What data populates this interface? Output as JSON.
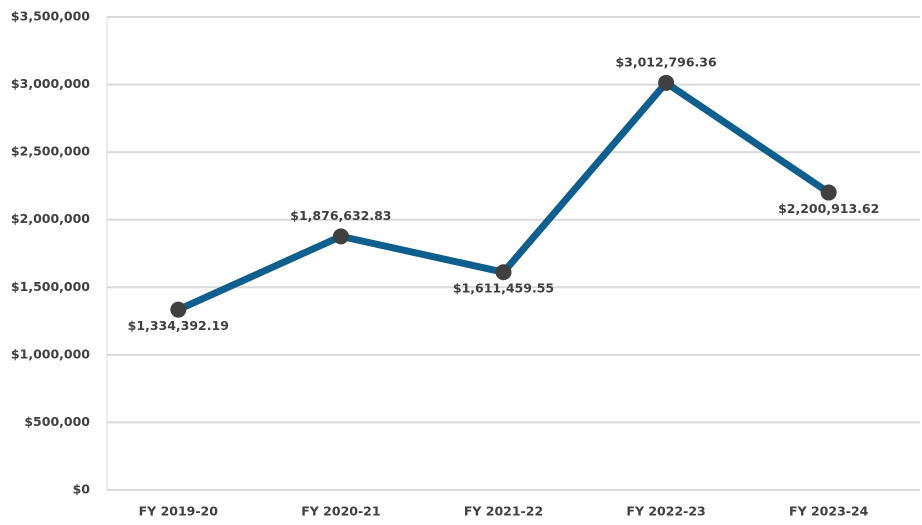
{
  "chart_data": {
    "type": "line",
    "categories": [
      "FY 2019-20",
      "FY 2020-21",
      "FY 2021-22",
      "FY 2022-23",
      "FY 2023-24"
    ],
    "series": [
      {
        "color": "#0e5f8e",
        "marker_color": "#404040",
        "values": [
          1334392.19,
          1876632.83,
          1611459.55,
          3012796.36,
          2200913.62
        ],
        "value_labels": [
          "$1,334,392.19",
          "$1,876,632.83",
          "$1,611,459.55",
          "$3,012,796.36",
          "$2,200,913.62"
        ]
      }
    ],
    "ylim": [
      0,
      3500000
    ],
    "yticks": [
      {
        "value": 0,
        "label": "$0"
      },
      {
        "value": 500000,
        "label": "$500,000"
      },
      {
        "value": 1000000,
        "label": "$1,000,000"
      },
      {
        "value": 1500000,
        "label": "$1,500,000"
      },
      {
        "value": 2000000,
        "label": "$2,000,000"
      },
      {
        "value": 2500000,
        "label": "$2,500,000"
      },
      {
        "value": 3000000,
        "label": "$3,000,000"
      },
      {
        "value": 3500000,
        "label": "$3,500,000"
      }
    ],
    "grid": true
  }
}
